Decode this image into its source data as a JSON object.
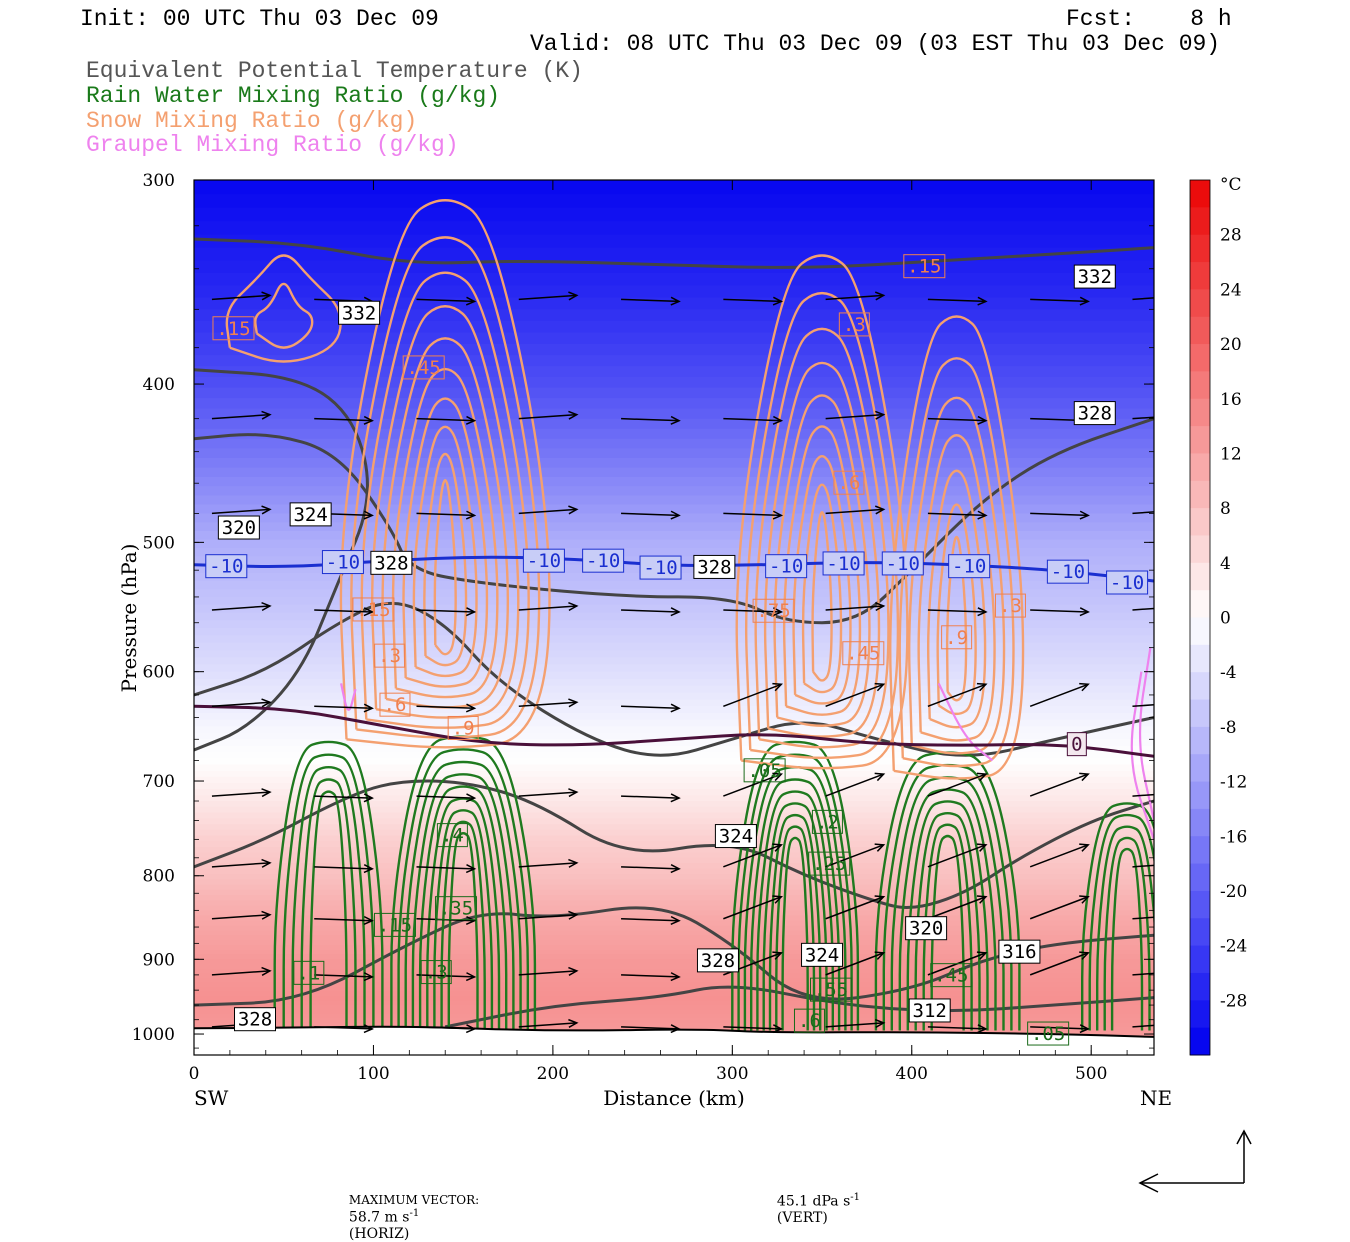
{
  "header": {
    "init": "Init: 00 UTC Thu 03 Dec 09",
    "fcst": "Fcst:    8 h",
    "valid": "Valid: 08 UTC Thu 03 Dec 09 (03 EST Thu 03 Dec 09)"
  },
  "legend": [
    {
      "text": "Equivalent Potential Temperature (K)",
      "color": "#555555"
    },
    {
      "text": "Rain Water Mixing Ratio (g/kg)",
      "color": "#1a7a1a"
    },
    {
      "text": "Snow Mixing Ratio (g/kg)",
      "color": "#f4a070"
    },
    {
      "text": "Graupel Mixing Ratio (g/kg)",
      "color": "#ee82ee"
    }
  ],
  "chart_data": {
    "type": "cross-section",
    "xlabel": "Distance (km)",
    "ylabel": "Pressure (hPa)",
    "xlim": [
      0,
      535
    ],
    "ylim": [
      1030,
      300
    ],
    "y_scale": "log",
    "x_ticks": [
      0,
      100,
      200,
      300,
      400,
      500
    ],
    "y_ticks": [
      300,
      400,
      500,
      600,
      700,
      800,
      900,
      1000
    ],
    "x_end_labels": {
      "left": "SW",
      "right": "NE"
    },
    "colorbar": {
      "unit": "°C",
      "ticks": [
        28,
        24,
        20,
        16,
        12,
        8,
        4,
        0,
        -4,
        -8,
        -12,
        -16,
        -20,
        -24,
        -28
      ],
      "range": [
        -32,
        32
      ]
    },
    "isotherms": [
      {
        "value": -10,
        "label": "-10",
        "color": "#1a2fd0",
        "p": [
          516,
          518,
          513,
          510,
          512,
          517,
          516,
          514,
          516,
          520,
          528
        ]
      },
      {
        "value": 0,
        "label": "0",
        "color": "#4a103a",
        "p": [
          630,
          632,
          648,
          664,
          666,
          660,
          654,
          664,
          666,
          664,
          676
        ]
      }
    ],
    "theta_e_labels": [
      {
        "text": "332",
        "x": 92,
        "p": 362
      },
      {
        "text": "332",
        "x": 502,
        "p": 344
      },
      {
        "text": "328",
        "x": 502,
        "p": 417
      },
      {
        "text": "320",
        "x": 25,
        "p": 490
      },
      {
        "text": "324",
        "x": 65,
        "p": 481
      },
      {
        "text": "328",
        "x": 110,
        "p": 515
      },
      {
        "text": "328",
        "x": 290,
        "p": 518
      },
      {
        "text": "324",
        "x": 302,
        "p": 757
      },
      {
        "text": "328",
        "x": 292,
        "p": 902
      },
      {
        "text": "324",
        "x": 350,
        "p": 895
      },
      {
        "text": "320",
        "x": 408,
        "p": 862
      },
      {
        "text": "316",
        "x": 460,
        "p": 891
      },
      {
        "text": "312",
        "x": 410,
        "p": 968
      },
      {
        "text": "328",
        "x": 34,
        "p": 980
      }
    ],
    "snow_labels": [
      ".15",
      ".45",
      ".15",
      ".3",
      ".6",
      ".75",
      ".45",
      ".9",
      ".3",
      ".15",
      ".3",
      ".6",
      ".9"
    ],
    "rain_labels": [
      ".05",
      ".2",
      ".25",
      ".35",
      ".4",
      ".45",
      ".55",
      ".6",
      ".15",
      ".1",
      ".3",
      ".05"
    ],
    "max_vector": {
      "horiz_label": "MAXIMUM VECTOR:",
      "horiz_value": "58.7 m s",
      "horiz_unit": "(HORIZ)",
      "vert_value": "45.1 dPa s",
      "vert_unit": "(VERT)",
      "exp": "-1"
    }
  }
}
